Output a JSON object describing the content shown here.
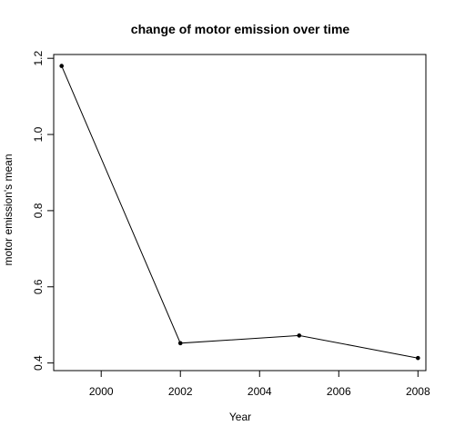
{
  "chart_data": {
    "type": "line",
    "title": "change of motor emission over time",
    "xlabel": "Year",
    "ylabel": "motor emission's mean",
    "xlim": [
      1998.8,
      2008.2
    ],
    "ylim": [
      0.38,
      1.21
    ],
    "x_ticks": [
      2000,
      2002,
      2004,
      2006,
      2008
    ],
    "y_ticks": [
      0.4,
      0.6,
      0.8,
      1.0,
      1.2
    ],
    "x_tick_labels": [
      "2000",
      "2002",
      "2004",
      "2006",
      "2008"
    ],
    "y_tick_labels": [
      "0.4",
      "0.6",
      "0.8",
      "1.0",
      "1.2"
    ],
    "grid": false,
    "series": [
      {
        "x": [
          1999,
          2002,
          2005,
          2008
        ],
        "values": [
          1.18,
          0.452,
          0.472,
          0.413
        ],
        "color": "#000000",
        "marker": "point"
      }
    ]
  }
}
